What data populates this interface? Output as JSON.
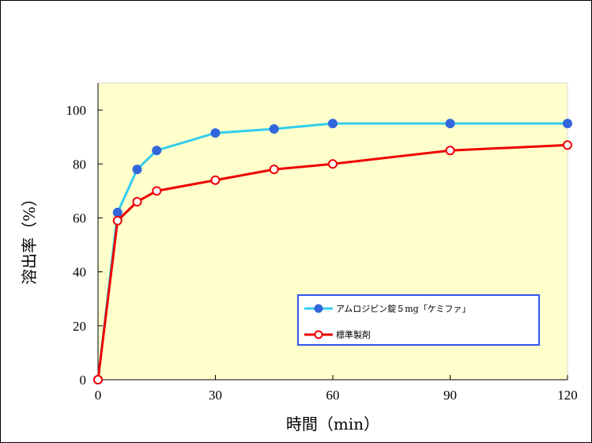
{
  "chart_data": {
    "type": "line",
    "xlabel": "時間（min）",
    "ylabel": "溶出率（%）",
    "xlim": [
      0,
      120
    ],
    "ylim": [
      0,
      110
    ],
    "x_ticks": [
      0,
      30,
      60,
      90,
      120
    ],
    "y_ticks": [
      0,
      20,
      40,
      60,
      80,
      100
    ],
    "x_tick_labels": [
      "0",
      "30",
      "60",
      "90",
      "120"
    ],
    "y_tick_labels": [
      "0",
      "20",
      "40",
      "60",
      "80",
      "100"
    ],
    "grid": false,
    "plot_background": "#ffffcc",
    "legend_position": "bottom-right",
    "series": [
      {
        "name": "アムロジピン錠５mg「ケミファ」",
        "line_color": "#33ccee",
        "marker_color": "#3366dd",
        "marker": "filled-circle",
        "x": [
          0,
          5,
          10,
          15,
          30,
          45,
          60,
          90,
          120
        ],
        "y": [
          0,
          62,
          78,
          85,
          91.5,
          93,
          95,
          95,
          95
        ]
      },
      {
        "name": "標準製剤",
        "line_color": "#ee0000",
        "marker_color": "#ee0000",
        "marker": "open-circle",
        "x": [
          0,
          5,
          10,
          15,
          30,
          45,
          60,
          90,
          120
        ],
        "y": [
          0,
          59,
          66,
          70,
          74,
          78,
          80,
          85,
          87
        ]
      }
    ]
  }
}
